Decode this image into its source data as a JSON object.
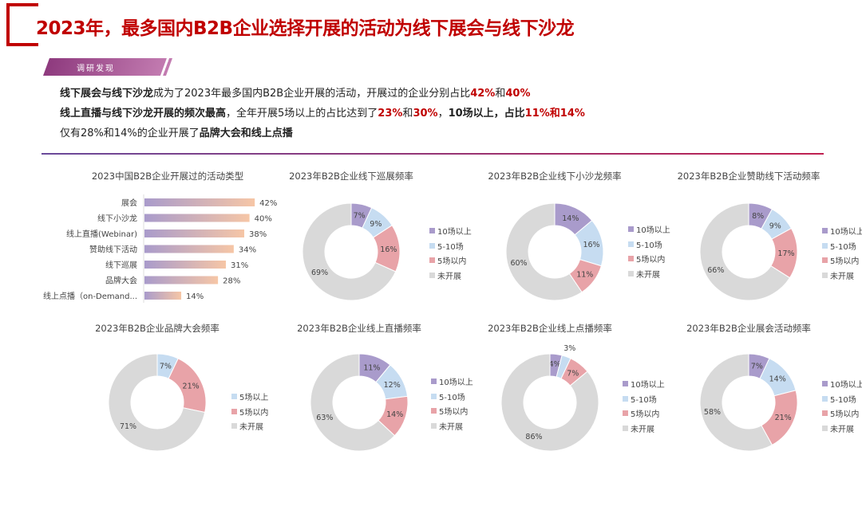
{
  "title": "2023年，最多国内B2B企业选择开展的活动为线下展会与线下沙龙",
  "ribbon": "调研发现",
  "findings": [
    [
      {
        "t": "线下展会与线下沙龙",
        "s": "b"
      },
      {
        "t": "成为了2023年最多国内B2B企业开展的活动，开展过的企业分别占比",
        "s": ""
      },
      {
        "t": "42%",
        "s": "r"
      },
      {
        "t": "和",
        "s": ""
      },
      {
        "t": "40%",
        "s": "r"
      }
    ],
    [
      {
        "t": "线上直播与线下沙龙开展的频次最高",
        "s": "b"
      },
      {
        "t": "，全年开展5场以上的占比达到了",
        "s": ""
      },
      {
        "t": "23%",
        "s": "r"
      },
      {
        "t": "和",
        "s": ""
      },
      {
        "t": "30%",
        "s": "r"
      },
      {
        "t": "，",
        "s": ""
      },
      {
        "t": "10场以上，占比",
        "s": "b"
      },
      {
        "t": "11%和14%",
        "s": "r"
      }
    ],
    [
      {
        "t": "仅有28%和14%的企业开展了",
        "s": ""
      },
      {
        "t": "品牌大会和线上点播",
        "s": "b"
      }
    ]
  ],
  "colors": {
    "title": "#c00000",
    "10场以上": "#a99bcb",
    "5-10场": "#c6dcf1",
    "5场以上": "#c6dcf1",
    "5场以内": "#e8a3a8",
    "未开展": "#d9d9d9",
    "bar_start": "#a99bcb",
    "bar_end": "#f6c6a6"
  },
  "chart_data": [
    {
      "type": "bar",
      "orientation": "horizontal",
      "title": "2023中国B2B企业开展过的活动类型",
      "categories": [
        "展会",
        "线下小沙龙",
        "线上直播(Webinar)",
        "赞助线下活动",
        "线下巡展",
        "品牌大会",
        "线上点播（on-Demand..."
      ],
      "values": [
        42,
        40,
        38,
        34,
        31,
        28,
        14
      ],
      "unit": "%"
    },
    {
      "type": "pie",
      "donut": true,
      "title": "2023年B2B企业线下巡展频率",
      "labels": [
        "10场以上",
        "5-10场",
        "5场以内",
        "未开展"
      ],
      "values": [
        7,
        9,
        16,
        69
      ]
    },
    {
      "type": "pie",
      "donut": true,
      "title": "2023年B2B企业线下小沙龙频率",
      "labels": [
        "10场以上",
        "5-10场",
        "5场以内",
        "未开展"
      ],
      "values": [
        14,
        16,
        11,
        60
      ]
    },
    {
      "type": "pie",
      "donut": true,
      "title": "2023年B2B企业赞助线下活动频率",
      "labels": [
        "10场以上",
        "5-10场",
        "5场以内",
        "未开展"
      ],
      "values": [
        8,
        9,
        17,
        66
      ]
    },
    {
      "type": "pie",
      "donut": true,
      "title": "2023年B2B企业品牌大会频率",
      "labels": [
        "5场以上",
        "5场以内",
        "未开展"
      ],
      "values": [
        7,
        21,
        71
      ]
    },
    {
      "type": "pie",
      "donut": true,
      "title": "2023年B2B企业线上直播频率",
      "labels": [
        "10场以上",
        "5-10场",
        "5场以内",
        "未开展"
      ],
      "values": [
        11,
        12,
        14,
        63
      ]
    },
    {
      "type": "pie",
      "donut": true,
      "title": "2023年B2B企业线上点播频率",
      "labels": [
        "10场以上",
        "5-10场",
        "5场以内",
        "未开展"
      ],
      "values": [
        4,
        3,
        7,
        86
      ]
    },
    {
      "type": "pie",
      "donut": true,
      "title": "2023年B2B企业展会活动频率",
      "labels": [
        "10场以上",
        "5-10场",
        "5场以内",
        "未开展"
      ],
      "values": [
        7,
        14,
        21,
        58
      ]
    }
  ]
}
